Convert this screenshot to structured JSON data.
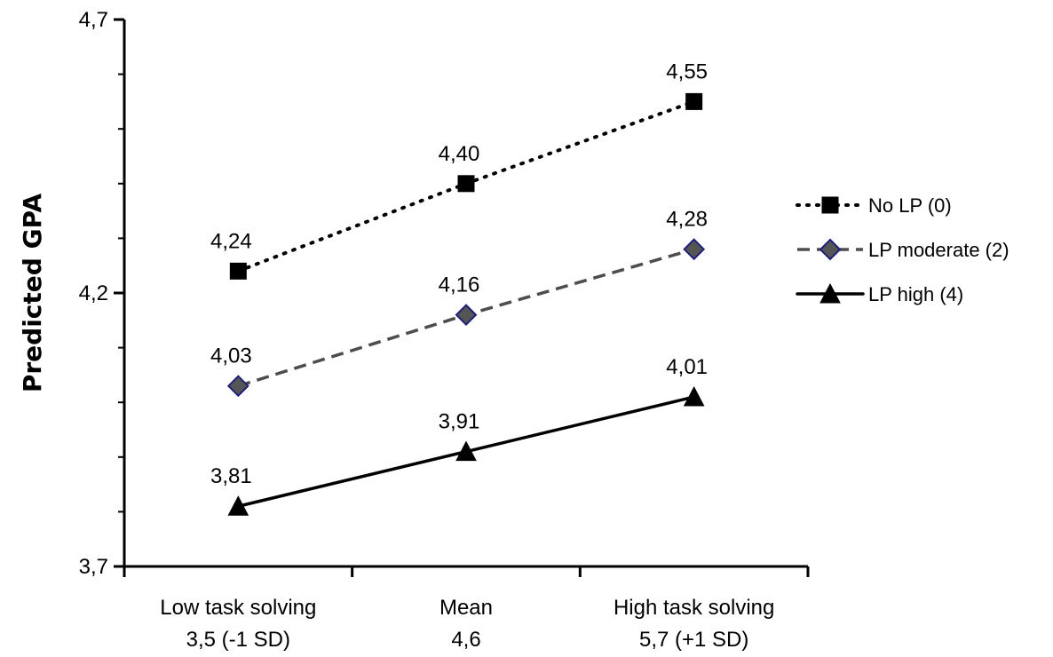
{
  "chart_data": {
    "type": "line",
    "ylabel": "Predicted GPA",
    "xlabel": "",
    "ylim": [
      3.7,
      4.7
    ],
    "yticks": [
      {
        "value": 3.7,
        "label": "3,7"
      },
      {
        "value": 4.2,
        "label": "4,2"
      },
      {
        "value": 4.7,
        "label": "4,7"
      }
    ],
    "categories": [
      {
        "line1": "Low task solving",
        "line2": "3,5 (-1 SD)"
      },
      {
        "line1": "Mean",
        "line2": "4,6"
      },
      {
        "line1": "High task solving",
        "line2": "5,7 (+1 SD)"
      }
    ],
    "grid": false,
    "legend_position": "right",
    "series": [
      {
        "name": "No LP (0)",
        "values": [
          4.24,
          4.4,
          4.55
        ],
        "labels": [
          "4,24",
          "4,40",
          "4,55"
        ],
        "line_style": "dotted",
        "marker": "square",
        "line_color": "#000000",
        "marker_fill": "#000000",
        "marker_stroke": "#000000"
      },
      {
        "name": "LP moderate (2)",
        "values": [
          4.03,
          4.16,
          4.28
        ],
        "labels": [
          "4,03",
          "4,16",
          "4,28"
        ],
        "line_style": "dashed",
        "marker": "diamond",
        "line_color": "#4d4d4d",
        "marker_fill": "#555555",
        "marker_stroke": "#1f1f7a"
      },
      {
        "name": "LP high (4)",
        "values": [
          3.81,
          3.91,
          4.01
        ],
        "labels": [
          "3,81",
          "3,91",
          "4,01"
        ],
        "line_style": "solid",
        "marker": "triangle",
        "line_color": "#000000",
        "marker_fill": "#000000",
        "marker_stroke": "#000000"
      }
    ]
  }
}
